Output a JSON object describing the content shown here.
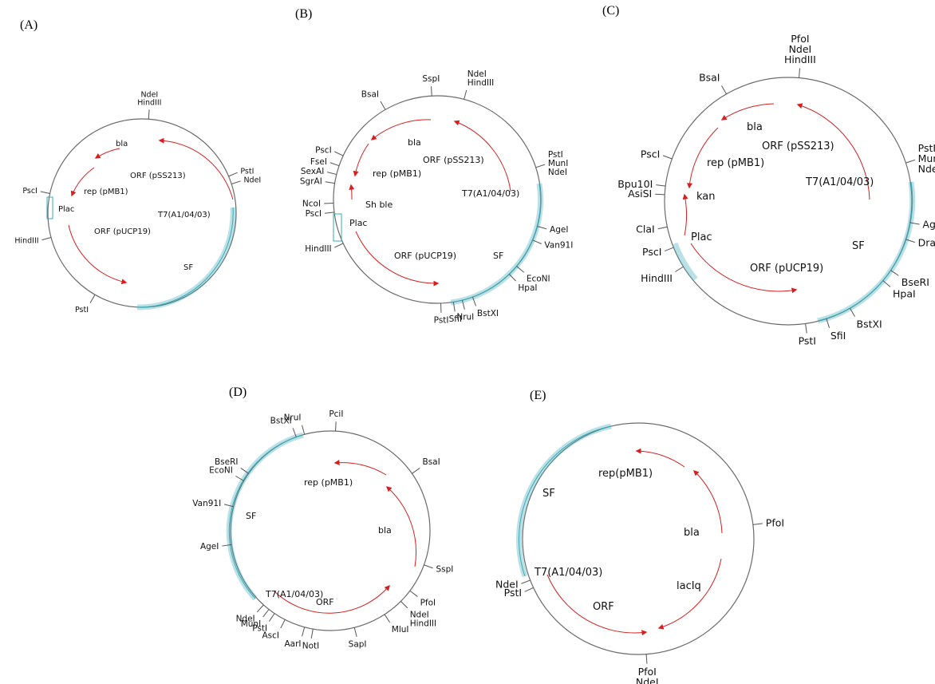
{
  "panels": {
    "A": {
      "letter": "(A)",
      "sites": [
        {
          "label": "NdeI\nHindIII",
          "angle": 4,
          "color": "#111"
        },
        {
          "label": "PstI",
          "angle": 67,
          "color": "#111"
        },
        {
          "label": "NdeI",
          "angle": 72,
          "color": "#111"
        },
        {
          "label": "PscI",
          "angle": 282,
          "color": "#e03030"
        },
        {
          "label": "HindIII",
          "angle": 255,
          "color": "#111"
        },
        {
          "label": "PstI",
          "angle": 210,
          "color": "#111"
        }
      ],
      "features": [
        {
          "label": "bla"
        },
        {
          "label": "ORF (pSS213)"
        },
        {
          "label": "rep (pMB1)"
        },
        {
          "label": "T7(A1/04/03)"
        },
        {
          "label": "Plac"
        },
        {
          "label": "ORF (pUCP19)"
        },
        {
          "label": "SF"
        }
      ]
    },
    "B": {
      "letter": "(B)",
      "sites": [
        {
          "label": "SspI",
          "angle": 357,
          "color": "#111"
        },
        {
          "label": "NdeI\nHindIII",
          "angle": 15,
          "color": "#111"
        },
        {
          "label": "BsaI",
          "angle": 330,
          "color": "#111"
        },
        {
          "label": "PstI\nMunI\nNdeI",
          "angle": 72,
          "color": "#111"
        },
        {
          "label": "PscI",
          "angle": 295,
          "color": "#e03030"
        },
        {
          "label": "FseI",
          "angle": 289,
          "color": "#111"
        },
        {
          "label": "SexAI",
          "angle": 284,
          "color": "#111"
        },
        {
          "label": "SgrAI",
          "angle": 279,
          "color": "#111"
        },
        {
          "label": "NcoI",
          "angle": 268,
          "color": "#111"
        },
        {
          "label": "PscI",
          "angle": 263,
          "color": "#111"
        },
        {
          "label": "HindIII",
          "angle": 245,
          "color": "#111"
        },
        {
          "label": "AgeI",
          "angle": 105,
          "color": "#111"
        },
        {
          "label": "Van91I",
          "angle": 113,
          "color": "#111"
        },
        {
          "label": "EcoNI",
          "angle": 130,
          "color": "#111"
        },
        {
          "label": "HpaI",
          "angle": 136,
          "color": "#111"
        },
        {
          "label": "BstXI",
          "angle": 160,
          "color": "#111"
        },
        {
          "label": "NruI",
          "angle": 166,
          "color": "#111"
        },
        {
          "label": "SfiI",
          "angle": 171,
          "color": "#111"
        },
        {
          "label": "PstI",
          "angle": 178,
          "color": "#111"
        }
      ],
      "features": [
        {
          "label": "bla"
        },
        {
          "label": "ORF (pSS213)"
        },
        {
          "label": "rep (pMB1)"
        },
        {
          "label": "T7(A1/04/03)"
        },
        {
          "label": "Sh ble"
        },
        {
          "label": "Plac"
        },
        {
          "label": "ORF (pUCP19)"
        },
        {
          "label": "SF"
        }
      ]
    },
    "C": {
      "letter": "(C)",
      "sites": [
        {
          "label": "PfoI\nNdeI\nHindIII",
          "angle": 5,
          "color": "#111"
        },
        {
          "label": "BsaI",
          "angle": 330,
          "color": "#111"
        },
        {
          "label": "PstI\nMunI\nNdeI",
          "angle": 72,
          "color": "#111"
        },
        {
          "label": "PscI",
          "angle": 290,
          "color": "#e03030"
        },
        {
          "label": "Bpu10I",
          "angle": 277,
          "color": "#111"
        },
        {
          "label": "AsiSI",
          "angle": 273,
          "color": "#111"
        },
        {
          "label": "ClaI",
          "angle": 258,
          "color": "#111"
        },
        {
          "label": "PscI",
          "angle": 248,
          "color": "#111"
        },
        {
          "label": "HindIII",
          "angle": 238,
          "color": "#111"
        },
        {
          "label": "AgeI",
          "angle": 100,
          "color": "#111"
        },
        {
          "label": "DraIII",
          "angle": 108,
          "color": "#111"
        },
        {
          "label": "BseRI",
          "angle": 124,
          "color": "#111"
        },
        {
          "label": "HpaI",
          "angle": 130,
          "color": "#111"
        },
        {
          "label": "BstXI",
          "angle": 150,
          "color": "#111"
        },
        {
          "label": "SfiI",
          "angle": 162,
          "color": "#111"
        },
        {
          "label": "PstI",
          "angle": 172,
          "color": "#111"
        }
      ],
      "features": [
        {
          "label": "bla"
        },
        {
          "label": "ORF (pSS213)"
        },
        {
          "label": "rep (pMB1)"
        },
        {
          "label": "T7(A1/04/03)"
        },
        {
          "label": "kan"
        },
        {
          "label": "Plac"
        },
        {
          "label": "ORF (pUCP19)"
        },
        {
          "label": "SF"
        }
      ]
    },
    "D": {
      "letter": "(D)",
      "sites": [
        {
          "label": "PciI",
          "angle": 3,
          "color": "#111"
        },
        {
          "label": "NruI",
          "angle": 345,
          "color": "#111"
        },
        {
          "label": "BstXI",
          "angle": 340,
          "color": "#111"
        },
        {
          "label": "BsaI",
          "angle": 55,
          "color": "#e03030"
        },
        {
          "label": "BseRI",
          "angle": 305,
          "color": "#111"
        },
        {
          "label": "EcoNI",
          "angle": 300,
          "color": "#111"
        },
        {
          "label": "Van91I",
          "angle": 284,
          "color": "#111"
        },
        {
          "label": "AgeI",
          "angle": 262,
          "color": "#111"
        },
        {
          "label": "SspI",
          "angle": 110,
          "color": "#111"
        },
        {
          "label": "PfoI",
          "angle": 127,
          "color": "#111"
        },
        {
          "label": "NdeI\nHindIII",
          "angle": 135,
          "color": "#111"
        },
        {
          "label": "MluI",
          "angle": 147,
          "color": "#111"
        },
        {
          "label": "SapI",
          "angle": 166,
          "color": "#111"
        },
        {
          "label": "NotI",
          "angle": 190,
          "color": "#111"
        },
        {
          "label": "AarI",
          "angle": 195,
          "color": "#111"
        },
        {
          "label": "AscI",
          "angle": 207,
          "color": "#111"
        },
        {
          "label": "PstI",
          "angle": 214,
          "color": "#111"
        },
        {
          "label": "MunI",
          "angle": 218,
          "color": "#111"
        },
        {
          "label": "NdeI",
          "angle": 222,
          "color": "#111"
        }
      ],
      "features": [
        {
          "label": "rep (pMB1)"
        },
        {
          "label": "SF"
        },
        {
          "label": "bla"
        },
        {
          "label": "T7(A1/04/03)"
        },
        {
          "label": "ORF"
        }
      ]
    },
    "E": {
      "letter": "(E)",
      "sites": [
        {
          "label": "PfoI",
          "angle": 83,
          "color": "#e03030"
        },
        {
          "label": "NdeI",
          "angle": 249,
          "color": "#111"
        },
        {
          "label": "PstI",
          "angle": 245,
          "color": "#111"
        },
        {
          "label": "PfoI\nNdeI",
          "angle": 176,
          "color": "#111"
        }
      ],
      "features": [
        {
          "label": "rep(pMB1)"
        },
        {
          "label": "SF"
        },
        {
          "label": "bla"
        },
        {
          "label": "T7(A1/04/03)"
        },
        {
          "label": "lacIq"
        },
        {
          "label": "ORF"
        }
      ]
    }
  },
  "colors": {
    "backbone": "#6b6b6b",
    "feature_arrow": "#d42020",
    "feature_box": "#3aa9b8",
    "highlight_site": "#e03030"
  }
}
